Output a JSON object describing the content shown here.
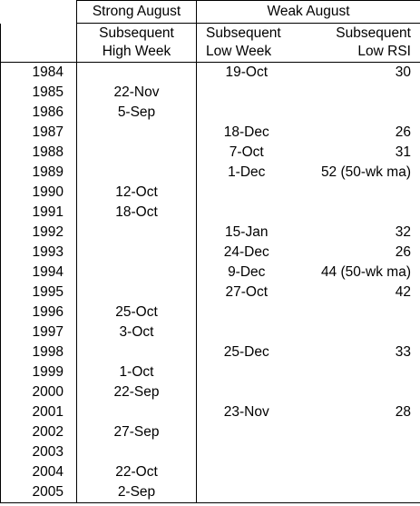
{
  "table": {
    "group_headers": [
      "Strong August",
      "Weak August"
    ],
    "sub_headers": [
      [
        "Subsequent",
        "High Week"
      ],
      [
        "Subsequent",
        "Low Week"
      ],
      [
        "Subsequent",
        "Low RSI"
      ]
    ],
    "rows": [
      [
        "1984",
        null,
        "19-Oct",
        "30"
      ],
      [
        "1985",
        "22-Nov",
        null,
        null
      ],
      [
        "1986",
        "5-Sep",
        null,
        null
      ],
      [
        "1987",
        null,
        "18-Dec",
        "26"
      ],
      [
        "1988",
        null,
        "7-Oct",
        "31"
      ],
      [
        "1989",
        null,
        "1-Dec",
        "52 (50-wk ma)"
      ],
      [
        "1990",
        "12-Oct",
        null,
        null
      ],
      [
        "1991",
        "18-Oct",
        null,
        null
      ],
      [
        "1992",
        null,
        "15-Jan",
        "32"
      ],
      [
        "1993",
        null,
        "24-Dec",
        "26"
      ],
      [
        "1994",
        null,
        "9-Dec",
        "44 (50-wk ma)"
      ],
      [
        "1995",
        null,
        "27-Oct",
        "42"
      ],
      [
        "1996",
        "25-Oct",
        null,
        null
      ],
      [
        "1997",
        "3-Oct",
        null,
        null
      ],
      [
        "1998",
        null,
        "25-Dec",
        "33"
      ],
      [
        "1999",
        "1-Oct",
        null,
        null
      ],
      [
        "2000",
        "22-Sep",
        null,
        null
      ],
      [
        "2001",
        null,
        "23-Nov",
        "28"
      ],
      [
        "2002",
        "27-Sep",
        null,
        null
      ],
      [
        "2003",
        null,
        null,
        null
      ],
      [
        "2004",
        "22-Oct",
        null,
        null
      ],
      [
        "2005",
        "2-Sep",
        null,
        null
      ]
    ]
  }
}
